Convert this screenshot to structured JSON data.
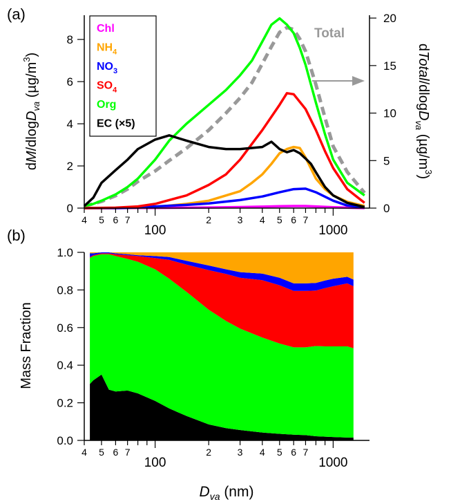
{
  "chart_data": [
    {
      "panel_label": "(a)",
      "type": "line",
      "x_scale": "log",
      "x_range": [
        40,
        1600
      ],
      "x_tick_labels": [
        "4",
        "5",
        "6",
        "7",
        "100",
        "2",
        "3",
        "4",
        "5",
        "6",
        "7",
        "1000"
      ],
      "ylabel_left": "dM/dlogDva (µg/m3)",
      "ylabel_left_parts": {
        "pre": "d",
        "M": "M",
        "mid": "/dlog",
        "D": "D",
        "sub": "va",
        "post": " (µg/m",
        "sup": "3",
        "close": ")"
      },
      "ylim_left": [
        0,
        9.15
      ],
      "yticks_left": [
        "0",
        "2",
        "4",
        "6",
        "8"
      ],
      "ylabel_right": "dTotal/dlogDva (µg/m3)",
      "ylabel_right_parts": {
        "pre": "d",
        "T": "Total",
        "mid": "/dlog",
        "D": "D",
        "sub": "va",
        "post": " (µg/m",
        "sup": "3",
        "close": ")"
      },
      "ylim_right": [
        0,
        20.3
      ],
      "yticks_right": [
        "0",
        "5",
        "10",
        "15",
        "20"
      ],
      "total_label": "Total",
      "legend": {
        "placement": "top-left",
        "entries": [
          {
            "main": "Chl",
            "sub": "",
            "color": "#ff00ff"
          },
          {
            "main": "NH",
            "sub": "4",
            "color": "#ffa500"
          },
          {
            "main": "NO",
            "sub": "3",
            "color": "#0000ff"
          },
          {
            "main": "SO",
            "sub": "4",
            "color": "#ff0000"
          },
          {
            "main": "Org",
            "sub": "",
            "color": "#00ff00"
          },
          {
            "main": "EC (×5)",
            "sub": "",
            "color": "#000000"
          }
        ]
      },
      "series": [
        {
          "name": "Chl",
          "color": "#ff00ff",
          "axis": "left",
          "x": [
            40,
            60,
            100,
            200,
            300,
            400,
            500,
            600,
            700,
            800,
            1000,
            1500
          ],
          "y": [
            0,
            0,
            0.01,
            0.03,
            0.05,
            0.07,
            0.09,
            0.1,
            0.1,
            0.08,
            0.04,
            0
          ]
        },
        {
          "name": "NH4",
          "color": "#ffa500",
          "axis": "left",
          "x": [
            40,
            60,
            80,
            100,
            150,
            200,
            300,
            350,
            400,
            450,
            500,
            550,
            600,
            650,
            700,
            800,
            900,
            1000,
            1200,
            1500
          ],
          "y": [
            0,
            0,
            0.02,
            0.05,
            0.2,
            0.35,
            0.8,
            1.2,
            1.6,
            2.1,
            2.6,
            2.8,
            2.9,
            2.85,
            2.4,
            1.4,
            0.9,
            0.6,
            0.3,
            0.1
          ]
        },
        {
          "name": "NO3",
          "color": "#0000ff",
          "axis": "left",
          "x": [
            40,
            60,
            80,
            100,
            150,
            200,
            300,
            400,
            500,
            600,
            700,
            800,
            1000,
            1200,
            1500
          ],
          "y": [
            0,
            0,
            0.03,
            0.08,
            0.15,
            0.22,
            0.38,
            0.55,
            0.75,
            0.9,
            0.92,
            0.75,
            0.35,
            0.12,
            0.03
          ]
        },
        {
          "name": "SO4",
          "color": "#ff0000",
          "axis": "left",
          "x": [
            40,
            60,
            80,
            100,
            150,
            200,
            250,
            300,
            400,
            500,
            550,
            600,
            700,
            800,
            900,
            1000,
            1200,
            1500
          ],
          "y": [
            0,
            0.02,
            0.08,
            0.2,
            0.6,
            1.1,
            1.6,
            2.3,
            3.7,
            4.9,
            5.45,
            5.4,
            4.7,
            3.7,
            2.7,
            1.9,
            0.9,
            0.25
          ]
        },
        {
          "name": "Org",
          "color": "#00ff00",
          "axis": "left",
          "x": [
            40,
            45,
            50,
            60,
            70,
            80,
            100,
            120,
            150,
            200,
            250,
            300,
            350,
            400,
            450,
            500,
            550,
            600,
            650,
            700,
            800,
            900,
            1000,
            1200,
            1500
          ],
          "y": [
            0.1,
            0.2,
            0.35,
            0.65,
            1.0,
            1.4,
            2.3,
            3.2,
            4.0,
            4.9,
            5.6,
            6.3,
            7.0,
            7.9,
            8.7,
            9.0,
            8.7,
            8.3,
            7.6,
            6.8,
            5.0,
            3.5,
            2.3,
            1.2,
            0.6
          ]
        },
        {
          "name": "EC (×5)",
          "color": "#000000",
          "axis": "left",
          "x": [
            40,
            45,
            50,
            60,
            70,
            80,
            100,
            120,
            150,
            200,
            250,
            300,
            400,
            450,
            500,
            550,
            600,
            650,
            700,
            750,
            800,
            900,
            1000,
            1200,
            1500
          ],
          "y": [
            0.1,
            0.5,
            1.2,
            1.8,
            2.3,
            2.8,
            3.25,
            3.45,
            3.2,
            2.9,
            2.8,
            2.8,
            2.9,
            3.15,
            2.8,
            2.65,
            2.75,
            2.6,
            2.35,
            2.1,
            1.7,
            1.0,
            0.6,
            0.25,
            0.05
          ]
        },
        {
          "name": "Total",
          "color": "#999999",
          "axis": "right",
          "dashed": true,
          "x": [
            40,
            50,
            60,
            70,
            80,
            100,
            120,
            150,
            200,
            250,
            300,
            350,
            400,
            450,
            500,
            550,
            600,
            650,
            700,
            800,
            900,
            1000,
            1200,
            1500
          ],
          "y": [
            0.2,
            0.7,
            1.3,
            2.0,
            2.8,
            3.9,
            5.0,
            6.3,
            8.2,
            10.0,
            11.6,
            13.2,
            15.2,
            17.0,
            18.5,
            19.0,
            18.8,
            17.8,
            16.5,
            13.0,
            9.5,
            6.5,
            3.8,
            1.6
          ]
        }
      ]
    },
    {
      "panel_label": "(b)",
      "type": "area",
      "stacked": true,
      "x_scale": "log",
      "x_range": [
        40,
        1600
      ],
      "x_tick_labels": [
        "4",
        "5",
        "6",
        "7",
        "100",
        "2",
        "3",
        "4",
        "5",
        "6",
        "7",
        "1000"
      ],
      "xlabel_parts": {
        "D": "D",
        "sub": "va",
        "post": " (nm)"
      },
      "ylabel": "Mass Fraction",
      "ylim": [
        0,
        1.0
      ],
      "yticks": [
        "0.0",
        "0.2",
        "0.4",
        "0.6",
        "0.8",
        "1.0"
      ],
      "x": [
        43,
        45,
        50,
        55,
        60,
        70,
        80,
        100,
        120,
        150,
        200,
        250,
        300,
        400,
        500,
        600,
        700,
        800,
        900,
        1000,
        1200,
        1300
      ],
      "series": [
        {
          "name": "EC",
          "color": "#000000",
          "values": [
            0.3,
            0.32,
            0.35,
            0.27,
            0.26,
            0.265,
            0.25,
            0.21,
            0.17,
            0.13,
            0.085,
            0.065,
            0.055,
            0.042,
            0.035,
            0.03,
            0.028,
            0.022,
            0.02,
            0.018,
            0.015,
            0.015
          ]
        },
        {
          "name": "Org",
          "color": "#00ff00",
          "values": [
            0.67,
            0.66,
            0.64,
            0.72,
            0.72,
            0.7,
            0.7,
            0.7,
            0.69,
            0.66,
            0.61,
            0.57,
            0.54,
            0.505,
            0.48,
            0.465,
            0.467,
            0.48,
            0.48,
            0.482,
            0.485,
            0.475
          ]
        },
        {
          "name": "SO4",
          "color": "#ff0000",
          "values": [
            0.005,
            0.005,
            0.005,
            0.005,
            0.01,
            0.02,
            0.03,
            0.06,
            0.1,
            0.145,
            0.21,
            0.25,
            0.27,
            0.305,
            0.31,
            0.3,
            0.3,
            0.295,
            0.31,
            0.32,
            0.335,
            0.33
          ]
        },
        {
          "name": "NO3",
          "color": "#0000ff",
          "values": [
            0.02,
            0.01,
            0.01,
            0.005,
            0.005,
            0.005,
            0.005,
            0.01,
            0.015,
            0.02,
            0.025,
            0.025,
            0.03,
            0.035,
            0.04,
            0.04,
            0.04,
            0.04,
            0.04,
            0.04,
            0.035,
            0.035
          ]
        },
        {
          "name": "NH4",
          "color": "#ffa500",
          "values": [
            0.005,
            0.005,
            0.0,
            0.0,
            0.005,
            0.01,
            0.015,
            0.02,
            0.025,
            0.045,
            0.07,
            0.09,
            0.105,
            0.113,
            0.135,
            0.165,
            0.165,
            0.163,
            0.15,
            0.14,
            0.13,
            0.145
          ]
        },
        {
          "name": "Chl",
          "color": "#ff00ff",
          "values": [
            0,
            0,
            0,
            0,
            0,
            0,
            0,
            0,
            0,
            0,
            0,
            0,
            0,
            0,
            0,
            0,
            0,
            0,
            0,
            0,
            0,
            0
          ]
        }
      ]
    }
  ]
}
